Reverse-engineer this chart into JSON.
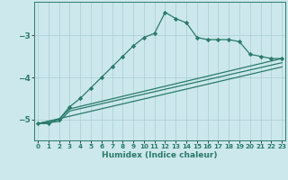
{
  "xlabel": "Humidex (Indice chaleur)",
  "bg_color": "#cce8ec",
  "grid_color": "#aaced4",
  "line_color": "#2a7a6a",
  "x_ticks": [
    0,
    1,
    2,
    3,
    4,
    5,
    6,
    7,
    8,
    9,
    10,
    11,
    12,
    13,
    14,
    15,
    16,
    17,
    18,
    19,
    20,
    21,
    22,
    23
  ],
  "y_ticks": [
    -3,
    -4,
    -5
  ],
  "ylim": [
    -5.5,
    -2.2
  ],
  "xlim": [
    -0.3,
    23.3
  ],
  "line1_x": [
    0,
    1,
    2,
    3,
    4,
    5,
    6,
    7,
    8,
    9,
    10,
    11,
    12,
    13,
    14,
    15,
    16,
    17,
    18,
    19,
    20,
    21,
    22,
    23
  ],
  "line1_y": [
    -5.1,
    -5.1,
    -5.0,
    -4.7,
    -4.5,
    -4.25,
    -4.0,
    -3.75,
    -3.5,
    -3.25,
    -3.05,
    -2.95,
    -2.45,
    -2.6,
    -2.7,
    -3.05,
    -3.1,
    -3.1,
    -3.1,
    -3.15,
    -3.45,
    -3.5,
    -3.55,
    -3.55
  ],
  "line2_x": [
    0,
    2,
    3,
    23
  ],
  "line2_y": [
    -5.1,
    -5.0,
    -4.75,
    -3.55
  ],
  "line3_x": [
    0,
    2,
    3,
    23
  ],
  "line3_y": [
    -5.1,
    -5.05,
    -4.8,
    -3.65
  ],
  "line4_x": [
    0,
    23
  ],
  "line4_y": [
    -5.1,
    -3.75
  ]
}
